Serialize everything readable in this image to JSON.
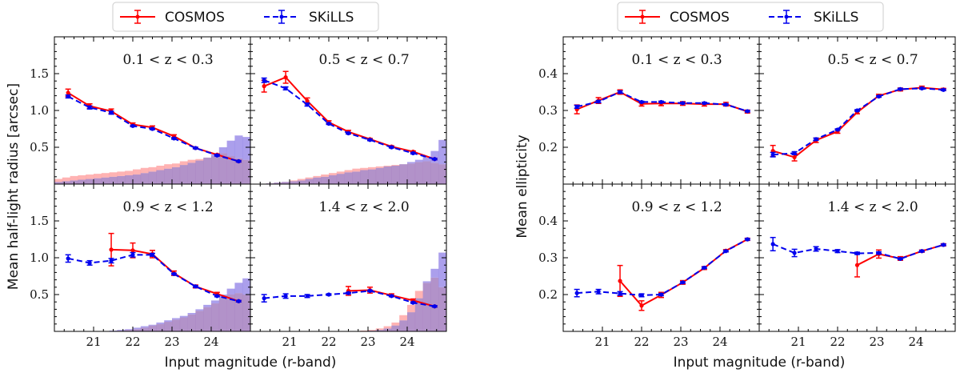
{
  "figure": {
    "xlabel": "Input magnitude (r-band)",
    "left_ylabel": "Mean half-light radius [arcsec]",
    "right_ylabel": "Mean ellipticity"
  },
  "legend": {
    "cosmos": "COSMOS",
    "skills": "SKiLLS"
  },
  "colors": {
    "cosmos": "#ff0000",
    "skills": "#0000ee",
    "hist_cosmos": "#ff9a9a",
    "hist_skills": "#8f7fe6",
    "hist_overlap": "#a57fc0"
  },
  "chart_data": [
    {
      "type": "line",
      "group": "left",
      "title": "0.1 < z < 0.3",
      "xlim": [
        20.0,
        25.0
      ],
      "ylim": [
        0.0,
        2.0
      ],
      "xticks": [],
      "yticks": [
        "0.5",
        "1.0",
        "1.5"
      ],
      "series": [
        {
          "name": "COSMOS",
          "x": [
            20.35,
            20.9,
            21.45,
            22.0,
            22.5,
            23.05,
            23.6,
            24.15,
            24.7
          ],
          "y": [
            1.24,
            1.06,
            0.99,
            0.81,
            0.77,
            0.65,
            0.49,
            0.4,
            0.31
          ],
          "err": [
            0.05,
            0.03,
            0.03,
            0.02,
            0.02,
            0.02,
            0.01,
            0.01,
            0.01
          ]
        },
        {
          "name": "SKiLLS",
          "x": [
            20.35,
            20.9,
            21.45,
            22.0,
            22.5,
            23.05,
            23.6,
            24.15,
            24.7
          ],
          "y": [
            1.19,
            1.04,
            0.97,
            0.79,
            0.75,
            0.62,
            0.49,
            0.39,
            0.31
          ],
          "err": [
            0.02,
            0.02,
            0.02,
            0.01,
            0.01,
            0.01,
            0.01,
            0.01,
            0.01
          ]
        }
      ],
      "hist_cosmos": [
        0.07,
        0.09,
        0.11,
        0.12,
        0.13,
        0.14,
        0.15,
        0.16,
        0.17,
        0.18,
        0.2,
        0.22,
        0.23,
        0.25,
        0.27,
        0.28,
        0.31,
        0.33,
        0.34,
        0.36,
        0.38,
        0.42,
        0.38,
        0.35,
        0.33
      ],
      "hist_skills": [
        0.03,
        0.04,
        0.05,
        0.06,
        0.07,
        0.08,
        0.09,
        0.1,
        0.11,
        0.12,
        0.13,
        0.15,
        0.17,
        0.19,
        0.21,
        0.23,
        0.26,
        0.29,
        0.32,
        0.36,
        0.41,
        0.5,
        0.59,
        0.66,
        0.64
      ]
    },
    {
      "type": "line",
      "group": "left",
      "title": "0.5 < z < 0.7",
      "xlim": [
        20.0,
        25.0
      ],
      "ylim": [
        0.0,
        2.0
      ],
      "xticks": [],
      "yticks": [],
      "series": [
        {
          "name": "COSMOS",
          "x": [
            20.35,
            20.9,
            21.45,
            22.0,
            22.5,
            23.05,
            23.6,
            24.15,
            24.7
          ],
          "y": [
            1.33,
            1.45,
            1.13,
            0.84,
            0.71,
            0.61,
            0.51,
            0.44,
            0.34
          ],
          "err": [
            0.08,
            0.08,
            0.04,
            0.02,
            0.02,
            0.01,
            0.01,
            0.01,
            0.01
          ]
        },
        {
          "name": "SKiLLS",
          "x": [
            20.35,
            20.9,
            21.45,
            22.0,
            22.5,
            23.05,
            23.6,
            24.15,
            24.7
          ],
          "y": [
            1.41,
            1.3,
            1.08,
            0.82,
            0.69,
            0.6,
            0.5,
            0.42,
            0.34
          ],
          "err": [
            0.03,
            0.02,
            0.02,
            0.01,
            0.01,
            0.01,
            0.01,
            0.01,
            0.01
          ]
        }
      ],
      "hist_cosmos": [
        0.0,
        0.0,
        0.01,
        0.02,
        0.03,
        0.05,
        0.07,
        0.09,
        0.11,
        0.13,
        0.15,
        0.17,
        0.19,
        0.21,
        0.22,
        0.23,
        0.24,
        0.25,
        0.26,
        0.27,
        0.28,
        0.3,
        0.31,
        0.29,
        0.27
      ],
      "hist_skills": [
        0.0,
        0.0,
        0.01,
        0.02,
        0.03,
        0.04,
        0.05,
        0.07,
        0.09,
        0.1,
        0.12,
        0.14,
        0.16,
        0.17,
        0.19,
        0.2,
        0.22,
        0.24,
        0.25,
        0.27,
        0.3,
        0.33,
        0.37,
        0.45,
        0.6
      ]
    },
    {
      "type": "line",
      "group": "left",
      "title": "0.9 < z < 1.2",
      "xlim": [
        20.0,
        25.0
      ],
      "ylim": [
        0.0,
        2.0
      ],
      "xticks": [
        "21",
        "22",
        "23",
        "24"
      ],
      "yticks": [
        "0.5",
        "1.0",
        "1.5"
      ],
      "series": [
        {
          "name": "COSMOS",
          "x": [
            21.45,
            22.0,
            22.5,
            23.05,
            23.6,
            24.15,
            24.7
          ],
          "y": [
            1.11,
            1.1,
            1.05,
            0.79,
            0.61,
            0.51,
            0.41
          ],
          "err": [
            0.22,
            0.1,
            0.05,
            0.03,
            0.02,
            0.02,
            0.01
          ]
        },
        {
          "name": "SKiLLS",
          "x": [
            20.35,
            20.9,
            21.45,
            22.0,
            22.5,
            23.05,
            23.6,
            24.15,
            24.7
          ],
          "y": [
            0.99,
            0.93,
            0.96,
            1.04,
            1.04,
            0.78,
            0.61,
            0.48,
            0.41
          ],
          "err": [
            0.05,
            0.03,
            0.03,
            0.03,
            0.02,
            0.01,
            0.01,
            0.01,
            0.01
          ]
        }
      ],
      "hist_cosmos": [
        0.0,
        0.0,
        0.0,
        0.0,
        0.0,
        0.0,
        0.0,
        0.0,
        0.01,
        0.02,
        0.03,
        0.05,
        0.08,
        0.1,
        0.13,
        0.16,
        0.19,
        0.23,
        0.28,
        0.33,
        0.38,
        0.45,
        0.5,
        0.52,
        0.5
      ],
      "hist_skills": [
        0.0,
        0.0,
        0.0,
        0.0,
        0.0,
        0.0,
        0.0,
        0.01,
        0.02,
        0.03,
        0.05,
        0.07,
        0.09,
        0.12,
        0.15,
        0.18,
        0.21,
        0.25,
        0.3,
        0.36,
        0.42,
        0.5,
        0.58,
        0.66,
        0.72
      ]
    },
    {
      "type": "line",
      "group": "left",
      "title": "1.4 < z < 2.0",
      "xlim": [
        20.0,
        25.0
      ],
      "ylim": [
        0.0,
        2.0
      ],
      "xticks": [
        "21",
        "22",
        "23",
        "24"
      ],
      "yticks": [],
      "series": [
        {
          "name": "COSMOS",
          "x": [
            22.5,
            23.05,
            23.6,
            24.15,
            24.7
          ],
          "y": [
            0.55,
            0.56,
            0.49,
            0.42,
            0.34
          ],
          "err": [
            0.06,
            0.04,
            0.02,
            0.02,
            0.01
          ]
        },
        {
          "name": "SKiLLS",
          "x": [
            20.35,
            20.9,
            21.45,
            22.0,
            22.5,
            23.05,
            23.6,
            24.15,
            24.7
          ],
          "y": [
            0.45,
            0.48,
            0.48,
            0.5,
            0.52,
            0.55,
            0.48,
            0.39,
            0.34
          ],
          "err": [
            0.05,
            0.03,
            0.02,
            0.01,
            0.01,
            0.01,
            0.01,
            0.01,
            0.01
          ]
        }
      ],
      "hist_cosmos": [
        0.0,
        0.0,
        0.0,
        0.0,
        0.0,
        0.0,
        0.0,
        0.0,
        0.0,
        0.0,
        0.0,
        0.0,
        0.0,
        0.0,
        0.01,
        0.02,
        0.04,
        0.07,
        0.12,
        0.22,
        0.36,
        0.55,
        0.66,
        0.73,
        0.6
      ],
      "hist_skills": [
        0.0,
        0.0,
        0.0,
        0.0,
        0.0,
        0.0,
        0.0,
        0.0,
        0.0,
        0.0,
        0.0,
        0.0,
        0.0,
        0.0,
        0.0,
        0.01,
        0.02,
        0.04,
        0.08,
        0.15,
        0.26,
        0.45,
        0.68,
        0.85,
        1.07
      ]
    },
    {
      "type": "line",
      "group": "right",
      "title": "0.1 < z < 0.3",
      "xlim": [
        20.0,
        25.0
      ],
      "ylim": [
        0.1,
        0.5
      ],
      "xticks": [],
      "yticks": [
        "0.2",
        "0.3",
        "0.4"
      ],
      "series": [
        {
          "name": "COSMOS",
          "x": [
            20.35,
            20.9,
            21.45,
            22.0,
            22.5,
            23.05,
            23.6,
            24.15,
            24.7
          ],
          "y": [
            0.303,
            0.327,
            0.35,
            0.318,
            0.319,
            0.319,
            0.317,
            0.317,
            0.297
          ],
          "err": [
            0.012,
            0.008,
            0.006,
            0.006,
            0.006,
            0.005,
            0.005,
            0.005,
            0.004
          ]
        },
        {
          "name": "SKiLLS",
          "x": [
            20.35,
            20.9,
            21.45,
            22.0,
            22.5,
            23.05,
            23.6,
            24.15,
            24.7
          ],
          "y": [
            0.31,
            0.324,
            0.35,
            0.323,
            0.323,
            0.32,
            0.32,
            0.316,
            0.298
          ],
          "err": [
            0.004,
            0.003,
            0.003,
            0.002,
            0.002,
            0.002,
            0.002,
            0.002,
            0.002
          ]
        }
      ]
    },
    {
      "type": "line",
      "group": "right",
      "title": "0.5 < z < 0.7",
      "xlim": [
        20.0,
        25.0
      ],
      "ylim": [
        0.1,
        0.5
      ],
      "xticks": [],
      "yticks": [],
      "series": [
        {
          "name": "COSMOS",
          "x": [
            20.35,
            20.9,
            21.45,
            22.0,
            22.5,
            23.05,
            23.6,
            24.15,
            24.7
          ],
          "y": [
            0.19,
            0.173,
            0.219,
            0.243,
            0.295,
            0.34,
            0.357,
            0.362,
            0.357
          ],
          "err": [
            0.015,
            0.01,
            0.006,
            0.005,
            0.004,
            0.004,
            0.004,
            0.004,
            0.003
          ]
        },
        {
          "name": "SKiLLS",
          "x": [
            20.35,
            20.9,
            21.45,
            22.0,
            22.5,
            23.05,
            23.6,
            24.15,
            24.7
          ],
          "y": [
            0.18,
            0.184,
            0.222,
            0.248,
            0.3,
            0.338,
            0.358,
            0.36,
            0.356
          ],
          "err": [
            0.006,
            0.004,
            0.003,
            0.002,
            0.002,
            0.002,
            0.002,
            0.002,
            0.002
          ]
        }
      ]
    },
    {
      "type": "line",
      "group": "right",
      "title": "0.9 < z < 1.2",
      "xlim": [
        20.0,
        25.0
      ],
      "ylim": [
        0.1,
        0.5
      ],
      "xticks": [
        "21",
        "22",
        "23",
        "24"
      ],
      "yticks": [
        "0.2",
        "0.3",
        "0.4"
      ],
      "series": [
        {
          "name": "COSMOS",
          "x": [
            21.45,
            22.0,
            22.5,
            23.05,
            23.6,
            24.15,
            24.7
          ],
          "y": [
            0.237,
            0.17,
            0.199,
            0.233,
            0.272,
            0.319,
            0.35
          ],
          "err": [
            0.042,
            0.013,
            0.007,
            0.005,
            0.004,
            0.003,
            0.003
          ]
        },
        {
          "name": "SKiLLS",
          "x": [
            20.35,
            20.9,
            21.45,
            22.0,
            22.5,
            23.05,
            23.6,
            24.15,
            24.7
          ],
          "y": [
            0.204,
            0.208,
            0.203,
            0.198,
            0.2,
            0.233,
            0.273,
            0.318,
            0.35
          ],
          "err": [
            0.01,
            0.006,
            0.005,
            0.004,
            0.003,
            0.002,
            0.002,
            0.002,
            0.002
          ]
        }
      ]
    },
    {
      "type": "line",
      "group": "right",
      "title": "1.4 < z < 2.0",
      "xlim": [
        20.0,
        25.0
      ],
      "ylim": [
        0.1,
        0.5
      ],
      "xticks": [
        "21",
        "22",
        "23",
        "24"
      ],
      "yticks": [],
      "series": [
        {
          "name": "COSMOS",
          "x": [
            22.5,
            23.05,
            23.6,
            24.15,
            24.7
          ],
          "y": [
            0.28,
            0.31,
            0.298,
            0.318,
            0.335
          ],
          "err": [
            0.032,
            0.011,
            0.005,
            0.003,
            0.003
          ]
        },
        {
          "name": "SKiLLS",
          "x": [
            20.35,
            20.9,
            21.45,
            22.0,
            22.5,
            23.05,
            23.6,
            24.15,
            24.7
          ],
          "y": [
            0.337,
            0.313,
            0.324,
            0.318,
            0.312,
            0.313,
            0.297,
            0.318,
            0.335
          ],
          "err": [
            0.018,
            0.01,
            0.006,
            0.004,
            0.003,
            0.003,
            0.002,
            0.002,
            0.002
          ]
        }
      ]
    }
  ]
}
